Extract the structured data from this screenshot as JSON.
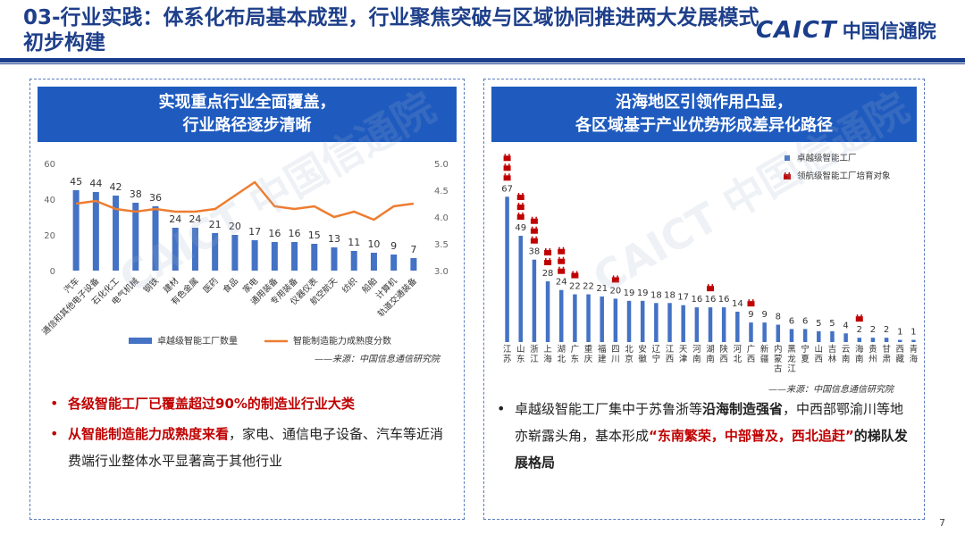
{
  "header": {
    "title": "03-行业实践：体系化布局基本成型，行业聚焦突破与区域协同推进两大发展模式初步构建",
    "logo_text": "CAICT",
    "logo_cn": "中国信通院"
  },
  "left": {
    "header_line1": "实现重点行业全面覆盖，",
    "header_line2": "行业路径逐步清晰",
    "source": "——来源：中国信息通信研究院",
    "bullets": [
      {
        "red": "各级智能工厂已覆盖超过90%的制造业行业大类",
        "rest": ""
      },
      {
        "red": "从智能制造能力成熟度来看",
        "rest": "，家电、通信电子设备、汽车等近消费端行业整体水平显著高于其他行业"
      }
    ]
  },
  "right": {
    "header_line1": "沿海地区引领作用凸显，",
    "header_line2": "各区域基于产业优势形成差异化路径",
    "source": "——来源：中国信息通信研究院",
    "bullet": {
      "p1": "卓越级智能工厂集中于苏鲁浙等",
      "b1": "沿海制造强省",
      "p2": "，中西部鄂渝川等地亦崭露头角，基本形成",
      "r1": "“东南繁荣，中部普及，西北追赶”",
      "b2": "的梯队发展格局"
    }
  },
  "watermark": "CAICT 中国信通院",
  "page_number": "7",
  "colors": {
    "bar": "#4472c4",
    "line": "#ed7d31",
    "header_bg": "#1f5bbf",
    "accent_red": "#c00000",
    "flag_red": "#c00000"
  },
  "chart_data": [
    {
      "type": "bar",
      "title": "",
      "categories": [
        "汽车",
        "通信和其他电子设备",
        "石化化工",
        "电气机械",
        "钢铁",
        "建材",
        "有色金属",
        "医药",
        "食品",
        "家电",
        "通用装备",
        "专用装备",
        "仪器仪表",
        "航空航天",
        "纺织",
        "船舶",
        "计算机",
        "轨道交通装备"
      ],
      "series": [
        {
          "name": "卓越级智能工厂数量",
          "type": "bar",
          "axis": "left",
          "values": [
            45,
            44,
            42,
            38,
            36,
            24,
            24,
            21,
            20,
            17,
            16,
            16,
            15,
            13,
            11,
            10,
            9,
            7
          ]
        },
        {
          "name": "智能制造能力成熟度分数",
          "type": "line",
          "axis": "right",
          "values": [
            4.25,
            4.3,
            4.15,
            4.1,
            4.15,
            4.1,
            4.1,
            4.15,
            4.4,
            4.65,
            4.2,
            4.15,
            4.2,
            4.0,
            4.1,
            3.95,
            4.2,
            4.25
          ]
        }
      ],
      "ylim": [
        0,
        60
      ],
      "yticks": [
        "0",
        "20",
        "40",
        "60"
      ],
      "y2lim": [
        3.0,
        5.0
      ],
      "y2ticks": [
        "3.0",
        "3.5",
        "4.0",
        "4.5",
        "5.0"
      ],
      "legend": "bottom"
    },
    {
      "type": "bar",
      "title": "",
      "categories": [
        "江苏",
        "山东",
        "浙江",
        "上海",
        "湖北",
        "广东",
        "重庆",
        "福建",
        "四川",
        "北京",
        "安徽",
        "辽宁",
        "江西",
        "天津",
        "河南",
        "湖南",
        "陕西",
        "河北",
        "广西",
        "新疆",
        "内蒙古",
        "黑龙江",
        "宁夏",
        "山西",
        "吉林",
        "云南",
        "海南",
        "贵州",
        "甘肃",
        "西藏",
        "青海"
      ],
      "series": [
        {
          "name": "卓越级智能工厂",
          "values": [
            67,
            49,
            38,
            28,
            24,
            22,
            22,
            21,
            20,
            19,
            19,
            18,
            18,
            17,
            16,
            16,
            16,
            14,
            9,
            9,
            8,
            6,
            6,
            5,
            5,
            4,
            2,
            2,
            2,
            1,
            1
          ]
        }
      ],
      "flags": {
        "name": "领航级智能工厂培育对象",
        "counts": [
          3,
          3,
          3,
          2,
          3,
          1,
          0,
          0,
          1,
          0,
          0,
          0,
          0,
          0,
          0,
          1,
          0,
          0,
          1,
          0,
          0,
          0,
          0,
          0,
          0,
          0,
          1,
          0,
          0,
          0,
          0
        ]
      },
      "ylim": [
        0,
        70
      ],
      "legend": "top-right"
    }
  ]
}
